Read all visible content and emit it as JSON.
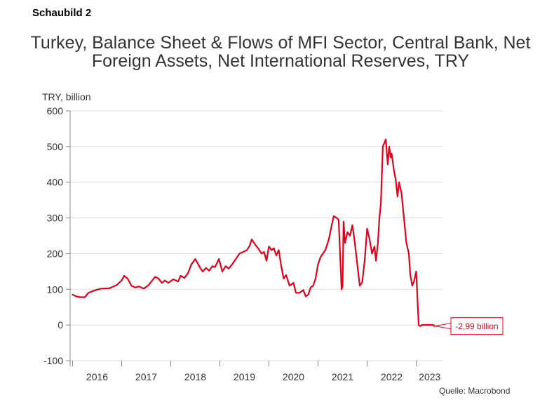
{
  "figure_label": "Schaubild 2",
  "source": "Quelle: Macrobond",
  "colors": {
    "series": "#e3001b",
    "grid": "#d9d9d9",
    "axis": "#888888",
    "text": "#333333"
  },
  "chart_data": {
    "type": "line",
    "title": "Turkey, Balance Sheet & Flows of MFI Sector, Central Bank, Net Foreign Assets, Net International Reserves, TRY",
    "ylabel": "TRY, billion",
    "xlabel": "",
    "ylim": [
      -100,
      600
    ],
    "yticks": [
      -100,
      0,
      100,
      200,
      300,
      400,
      500,
      600
    ],
    "ytick_labels": [
      "-100",
      "0",
      "100",
      "200",
      "300",
      "400",
      "500",
      "600"
    ],
    "xlim": [
      2015.95,
      2023.55
    ],
    "x_categories": [
      "2016",
      "2017",
      "2018",
      "2019",
      "2020",
      "2021",
      "2022",
      "2023"
    ],
    "grid": true,
    "legend": "none",
    "annotation": {
      "label": "-2,99 billion",
      "x": 2023.37,
      "y": -2.99
    },
    "series": [
      {
        "x": [
          2016.0,
          2016.08,
          2016.15,
          2016.25,
          2016.32,
          2016.45,
          2016.58,
          2016.75,
          2016.9,
          2017.0,
          2017.05,
          2017.12,
          2017.2,
          2017.28,
          2017.35,
          2017.45,
          2017.55,
          2017.68,
          2017.75,
          2017.82,
          2017.88,
          2017.95,
          2018.05,
          2018.15,
          2018.2,
          2018.28,
          2018.35,
          2018.42,
          2018.5,
          2018.6,
          2018.65,
          2018.72,
          2018.78,
          2018.85,
          2018.9,
          2018.98,
          2019.05,
          2019.12,
          2019.18,
          2019.25,
          2019.3,
          2019.4,
          2019.48,
          2019.55,
          2019.6,
          2019.65,
          2019.72,
          2019.78,
          2019.85,
          2019.9,
          2019.95,
          2020.0,
          2020.05,
          2020.1,
          2020.15,
          2020.2,
          2020.25,
          2020.3,
          2020.35,
          2020.42,
          2020.5,
          2020.55,
          2020.62,
          2020.7,
          2020.75,
          2020.8,
          2020.85,
          2020.9,
          2020.95,
          2021.0,
          2021.05,
          2021.1,
          2021.15,
          2021.22,
          2021.28,
          2021.32,
          2021.38,
          2021.42,
          2021.48,
          2021.5,
          2021.52,
          2021.55,
          2021.6,
          2021.65,
          2021.7,
          2021.75,
          2021.8,
          2021.85,
          2021.9,
          2021.95,
          2022.0,
          2022.05,
          2022.1,
          2022.15,
          2022.18,
          2022.22,
          2022.25,
          2022.28,
          2022.32,
          2022.38,
          2022.42,
          2022.45,
          2022.48,
          2022.5,
          2022.55,
          2022.58,
          2022.62,
          2022.65,
          2022.7,
          2022.75,
          2022.8,
          2022.85,
          2022.88,
          2022.92,
          2022.95,
          2023.0,
          2023.05,
          2023.08,
          2023.12,
          2023.18,
          2023.22,
          2023.25,
          2023.28,
          2023.32,
          2023.35,
          2023.37
        ],
        "y": [
          85,
          80,
          78,
          78,
          90,
          97,
          102,
          103,
          112,
          125,
          138,
          130,
          110,
          105,
          108,
          102,
          112,
          135,
          130,
          118,
          125,
          118,
          128,
          122,
          138,
          132,
          145,
          170,
          185,
          160,
          150,
          160,
          152,
          165,
          162,
          185,
          150,
          165,
          158,
          170,
          180,
          200,
          205,
          210,
          220,
          240,
          225,
          215,
          200,
          205,
          180,
          220,
          210,
          215,
          195,
          210,
          165,
          130,
          140,
          110,
          118,
          90,
          90,
          98,
          80,
          85,
          105,
          110,
          130,
          170,
          190,
          200,
          210,
          240,
          280,
          305,
          300,
          295,
          100,
          110,
          290,
          230,
          260,
          250,
          280,
          230,
          170,
          110,
          120,
          180,
          270,
          240,
          200,
          220,
          180,
          230,
          300,
          340,
          500,
          520,
          450,
          500,
          470,
          480,
          430,
          410,
          360,
          400,
          370,
          300,
          230,
          200,
          140,
          110,
          120,
          150,
          0,
          -2.99,
          0,
          0,
          0,
          0,
          0,
          0,
          0,
          -2.99
        ]
      }
    ]
  }
}
